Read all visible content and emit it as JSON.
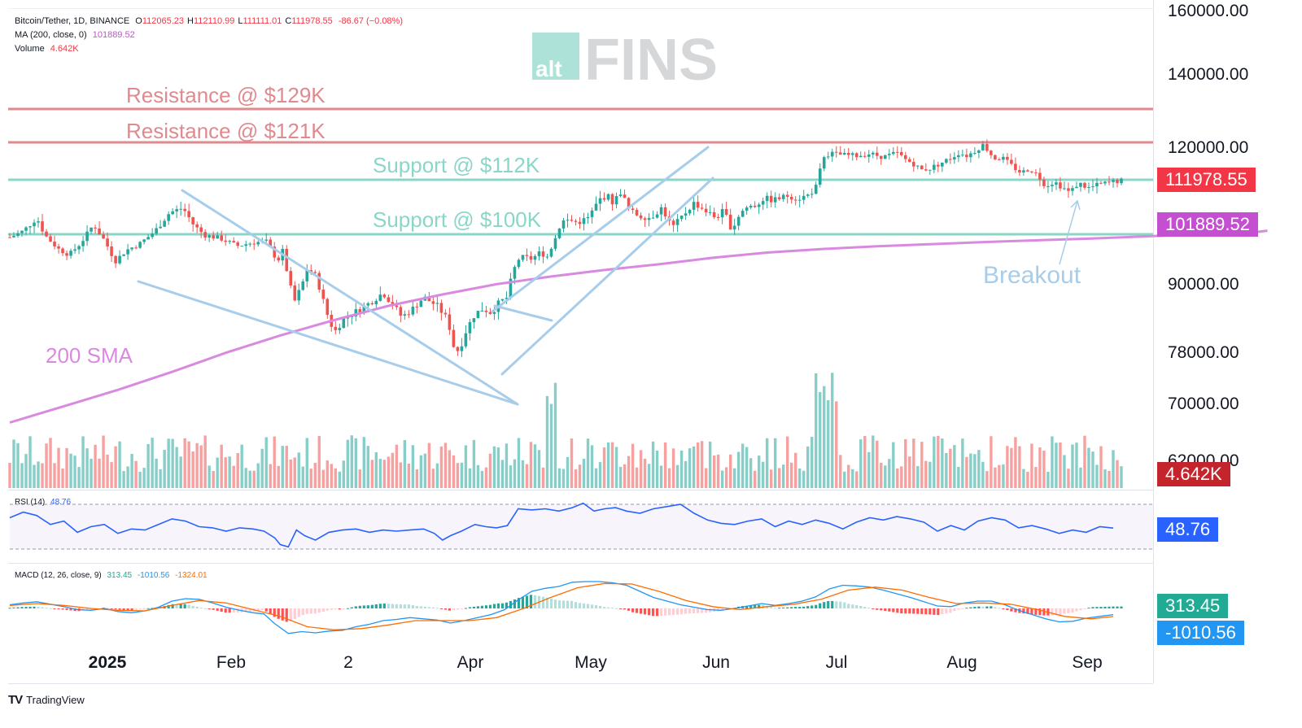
{
  "header": {
    "symbol": "Bitcoin/Tether, 1D, BINANCE",
    "ohlc": [
      {
        "k": "O",
        "v": "112065.23"
      },
      {
        "k": "H",
        "v": "112110.99"
      },
      {
        "k": "L",
        "v": "111111.01"
      },
      {
        "k": "C",
        "v": "111978.55"
      }
    ],
    "change": "-86.67 (−0.08%)",
    "ma_label": "MA (200, close, 0)",
    "ma_value": "101889.52",
    "volume_label": "Volume",
    "volume_value": "4.642K"
  },
  "logo": {
    "small": "alt",
    "big": "FINS"
  },
  "annotations": {
    "res129": "Resistance @ $129K",
    "res121": "Resistance @ $121K",
    "sup112": "Support @ $112K",
    "sup100": "Support @ $100K",
    "sma200": "200 SMA",
    "breakout": "Breakout"
  },
  "price_tags": {
    "last": "111978.55",
    "ma": "101889.52",
    "volume": "4.642K",
    "rsi": "48.76",
    "macd": "313.45",
    "signal": "-1010.56"
  },
  "rsi_panel": {
    "label": "RSI (14)",
    "value": "48.76"
  },
  "macd_panel": {
    "label": "MACD (12, 26, close, 9)",
    "v1": "313.45",
    "v2": "-1010.56",
    "v3": "-1324.01"
  },
  "brand": {
    "name": "TradingView",
    "mark": "TV"
  },
  "colors": {
    "up": "#26a69a",
    "down": "#ef5350",
    "resistance": "#e08a8f",
    "support": "#8ad6c8",
    "sma": "#d98ae0",
    "trend": "#a7cdea",
    "rsi": "#2962ff",
    "macd": "#2196f3",
    "signal": "#ff6d00",
    "last_tag": "#f23645",
    "ma_tag": "#c44fd0",
    "vol_tag": "#c4242c",
    "rsi_tag": "#2962ff",
    "macd_tag": "#22ab94",
    "signal_tag": "#2196f3"
  },
  "chart_data": {
    "type": "candlestick",
    "y_ticks": [
      "160000.00",
      "140000.00",
      "120000.00",
      "90000.00",
      "78000.00",
      "70000.00",
      "62000.00"
    ],
    "x_ticks": [
      "2025",
      "Feb",
      "2",
      "Apr",
      "May",
      "Jun",
      "Jul",
      "Aug",
      "Sep"
    ],
    "levels": {
      "resistance": [
        129000,
        121000
      ],
      "support": [
        112000,
        100000
      ]
    },
    "sma200": [
      [
        0,
        67200
      ],
      [
        40,
        69500
      ],
      [
        80,
        72000
      ],
      [
        120,
        74800
      ],
      [
        160,
        77800
      ],
      [
        200,
        80800
      ],
      [
        240,
        83500
      ],
      [
        280,
        86000
      ],
      [
        320,
        88000
      ],
      [
        360,
        89800
      ],
      [
        400,
        91500
      ],
      [
        440,
        93000
      ],
      [
        480,
        94300
      ],
      [
        520,
        95800
      ],
      [
        560,
        97000
      ],
      [
        600,
        97800
      ],
      [
        640,
        98400
      ],
      [
        680,
        98900
      ],
      [
        720,
        99400
      ],
      [
        760,
        99800
      ],
      [
        800,
        100200
      ],
      [
        840,
        100700
      ],
      [
        880,
        101200
      ],
      [
        920,
        101550
      ],
      [
        930,
        101889.52
      ]
    ],
    "price_path": [
      [
        0,
        100500
      ],
      [
        10,
        101800
      ],
      [
        20,
        104500
      ],
      [
        26,
        101000
      ],
      [
        36,
        97800
      ],
      [
        44,
        96500
      ],
      [
        52,
        99000
      ],
      [
        62,
        103200
      ],
      [
        70,
        99800
      ],
      [
        78,
        95000
      ],
      [
        86,
        97500
      ],
      [
        96,
        99000
      ],
      [
        108,
        102000
      ],
      [
        118,
        105500
      ],
      [
        128,
        106500
      ],
      [
        136,
        103000
      ],
      [
        144,
        101000
      ],
      [
        156,
        100200
      ],
      [
        168,
        98500
      ],
      [
        180,
        99300
      ],
      [
        190,
        99500
      ],
      [
        198,
        95000
      ],
      [
        202,
        97500
      ],
      [
        206,
        91000
      ],
      [
        210,
        86500
      ],
      [
        216,
        89500
      ],
      [
        220,
        93300
      ],
      [
        226,
        91800
      ],
      [
        234,
        85000
      ],
      [
        240,
        81300
      ],
      [
        246,
        83500
      ],
      [
        256,
        85000
      ],
      [
        266,
        86500
      ],
      [
        276,
        88300
      ],
      [
        284,
        86000
      ],
      [
        290,
        84000
      ],
      [
        298,
        85500
      ],
      [
        306,
        87500
      ],
      [
        316,
        86000
      ],
      [
        324,
        83500
      ],
      [
        328,
        79000
      ],
      [
        332,
        78000
      ],
      [
        338,
        82000
      ],
      [
        344,
        84600
      ],
      [
        350,
        85500
      ],
      [
        356,
        84800
      ],
      [
        362,
        86600
      ],
      [
        368,
        87500
      ],
      [
        372,
        92500
      ],
      [
        376,
        95400
      ],
      [
        380,
        96000
      ],
      [
        386,
        95500
      ],
      [
        392,
        97000
      ],
      [
        398,
        96000
      ],
      [
        402,
        99500
      ],
      [
        408,
        103800
      ],
      [
        414,
        104000
      ],
      [
        420,
        103500
      ],
      [
        428,
        104500
      ],
      [
        436,
        108200
      ],
      [
        442,
        109000
      ],
      [
        446,
        107500
      ],
      [
        452,
        109800
      ],
      [
        458,
        106000
      ],
      [
        466,
        104800
      ],
      [
        474,
        104500
      ],
      [
        482,
        106500
      ],
      [
        490,
        102500
      ],
      [
        498,
        105000
      ],
      [
        506,
        107500
      ],
      [
        514,
        106000
      ],
      [
        522,
        104500
      ],
      [
        528,
        106000
      ],
      [
        534,
        102000
      ],
      [
        540,
        105500
      ],
      [
        546,
        106800
      ],
      [
        552,
        107000
      ],
      [
        558,
        108500
      ],
      [
        564,
        108000
      ],
      [
        570,
        108500
      ],
      [
        576,
        109000
      ],
      [
        582,
        108300
      ],
      [
        590,
        109000
      ],
      [
        596,
        110500
      ],
      [
        602,
        117800
      ],
      [
        608,
        118300
      ],
      [
        616,
        118000
      ],
      [
        626,
        117800
      ],
      [
        636,
        118300
      ],
      [
        646,
        117500
      ],
      [
        656,
        118500
      ],
      [
        662,
        117000
      ],
      [
        668,
        116000
      ],
      [
        674,
        114500
      ],
      [
        680,
        114800
      ],
      [
        688,
        116000
      ],
      [
        696,
        117300
      ],
      [
        702,
        118500
      ],
      [
        708,
        117800
      ],
      [
        714,
        119000
      ],
      [
        720,
        120500
      ],
      [
        724,
        118800
      ],
      [
        728,
        117200
      ],
      [
        734,
        117300
      ],
      [
        742,
        115200
      ],
      [
        748,
        113800
      ],
      [
        754,
        114800
      ],
      [
        760,
        113300
      ],
      [
        766,
        111000
      ],
      [
        772,
        111800
      ],
      [
        778,
        110800
      ],
      [
        784,
        109500
      ],
      [
        790,
        111500
      ],
      [
        798,
        110500
      ],
      [
        806,
        111200
      ],
      [
        812,
        111500
      ],
      [
        818,
        111900
      ],
      [
        822,
        111978.55
      ]
    ],
    "rsi_range": [
      30,
      70
    ],
    "rsi_path": [
      [
        0,
        58
      ],
      [
        10,
        63
      ],
      [
        20,
        60
      ],
      [
        30,
        52
      ],
      [
        40,
        55
      ],
      [
        50,
        45
      ],
      [
        60,
        50
      ],
      [
        70,
        52
      ],
      [
        80,
        44
      ],
      [
        90,
        48
      ],
      [
        100,
        47
      ],
      [
        110,
        52
      ],
      [
        120,
        57
      ],
      [
        130,
        55
      ],
      [
        140,
        50
      ],
      [
        150,
        49
      ],
      [
        160,
        46
      ],
      [
        170,
        49
      ],
      [
        180,
        48
      ],
      [
        188,
        46
      ],
      [
        196,
        40
      ],
      [
        200,
        34
      ],
      [
        206,
        32
      ],
      [
        212,
        47
      ],
      [
        218,
        42
      ],
      [
        226,
        38
      ],
      [
        236,
        45
      ],
      [
        246,
        47
      ],
      [
        256,
        48
      ],
      [
        266,
        45
      ],
      [
        276,
        47
      ],
      [
        286,
        46
      ],
      [
        296,
        47
      ],
      [
        306,
        48
      ],
      [
        314,
        44
      ],
      [
        320,
        38
      ],
      [
        326,
        42
      ],
      [
        334,
        46
      ],
      [
        344,
        52
      ],
      [
        352,
        50
      ],
      [
        360,
        49
      ],
      [
        368,
        51
      ],
      [
        376,
        66
      ],
      [
        386,
        65
      ],
      [
        396,
        66
      ],
      [
        406,
        64
      ],
      [
        416,
        67
      ],
      [
        424,
        71
      ],
      [
        432,
        64
      ],
      [
        440,
        66
      ],
      [
        448,
        67
      ],
      [
        456,
        64
      ],
      [
        466,
        62
      ],
      [
        476,
        66
      ],
      [
        486,
        68
      ],
      [
        496,
        70
      ],
      [
        506,
        62
      ],
      [
        516,
        56
      ],
      [
        526,
        53
      ],
      [
        536,
        52
      ],
      [
        546,
        55
      ],
      [
        556,
        57
      ],
      [
        566,
        50
      ],
      [
        576,
        55
      ],
      [
        586,
        52
      ],
      [
        596,
        56
      ],
      [
        606,
        53
      ],
      [
        616,
        48
      ],
      [
        626,
        54
      ],
      [
        636,
        58
      ],
      [
        646,
        56
      ],
      [
        656,
        59
      ],
      [
        666,
        57
      ],
      [
        676,
        54
      ],
      [
        686,
        46
      ],
      [
        696,
        51
      ],
      [
        706,
        47
      ],
      [
        716,
        55
      ],
      [
        726,
        58
      ],
      [
        736,
        56
      ],
      [
        746,
        49
      ],
      [
        756,
        51
      ],
      [
        766,
        48
      ],
      [
        776,
        44
      ],
      [
        786,
        47
      ],
      [
        796,
        45
      ],
      [
        806,
        50
      ],
      [
        816,
        48.76
      ]
    ],
    "macd_path": [
      [
        0,
        600
      ],
      [
        10,
        900
      ],
      [
        20,
        1100
      ],
      [
        30,
        700
      ],
      [
        40,
        300
      ],
      [
        50,
        -200
      ],
      [
        60,
        -300
      ],
      [
        70,
        0
      ],
      [
        80,
        -500
      ],
      [
        90,
        -700
      ],
      [
        100,
        -400
      ],
      [
        110,
        200
      ],
      [
        120,
        1200
      ],
      [
        130,
        1600
      ],
      [
        140,
        1500
      ],
      [
        150,
        900
      ],
      [
        160,
        200
      ],
      [
        170,
        -300
      ],
      [
        180,
        -700
      ],
      [
        188,
        -900
      ],
      [
        196,
        -2500
      ],
      [
        206,
        -4100
      ],
      [
        216,
        -3800
      ],
      [
        226,
        -4000
      ],
      [
        236,
        -3700
      ],
      [
        246,
        -3600
      ],
      [
        256,
        -3000
      ],
      [
        266,
        -2600
      ],
      [
        276,
        -2000
      ],
      [
        286,
        -1800
      ],
      [
        296,
        -1500
      ],
      [
        306,
        -1700
      ],
      [
        316,
        -1900
      ],
      [
        326,
        -2400
      ],
      [
        336,
        -2000
      ],
      [
        346,
        -1500
      ],
      [
        356,
        -1000
      ],
      [
        366,
        -200
      ],
      [
        376,
        1400
      ],
      [
        386,
        2800
      ],
      [
        396,
        3300
      ],
      [
        406,
        3600
      ],
      [
        416,
        4300
      ],
      [
        426,
        4400
      ],
      [
        436,
        4400
      ],
      [
        446,
        4200
      ],
      [
        456,
        3800
      ],
      [
        466,
        2800
      ],
      [
        476,
        1800
      ],
      [
        486,
        1200
      ],
      [
        496,
        600
      ],
      [
        506,
        200
      ],
      [
        516,
        -200
      ],
      [
        526,
        -300
      ],
      [
        536,
        0
      ],
      [
        546,
        400
      ],
      [
        556,
        800
      ],
      [
        566,
        500
      ],
      [
        576,
        800
      ],
      [
        586,
        1200
      ],
      [
        596,
        1900
      ],
      [
        606,
        3200
      ],
      [
        616,
        3800
      ],
      [
        626,
        3700
      ],
      [
        636,
        3500
      ],
      [
        646,
        3000
      ],
      [
        656,
        2400
      ],
      [
        666,
        1800
      ],
      [
        676,
        1100
      ],
      [
        686,
        400
      ],
      [
        696,
        300
      ],
      [
        706,
        900
      ],
      [
        716,
        1200
      ],
      [
        726,
        1200
      ],
      [
        736,
        600
      ],
      [
        746,
        -300
      ],
      [
        756,
        -1000
      ],
      [
        766,
        -1700
      ],
      [
        776,
        -2200
      ],
      [
        786,
        -2100
      ],
      [
        796,
        -1600
      ],
      [
        806,
        -1300
      ],
      [
        816,
        -1010.56
      ]
    ],
    "signal_path": [
      [
        0,
        500
      ],
      [
        20,
        800
      ],
      [
        40,
        500
      ],
      [
        60,
        0
      ],
      [
        80,
        -300
      ],
      [
        100,
        -400
      ],
      [
        120,
        500
      ],
      [
        140,
        1300
      ],
      [
        160,
        900
      ],
      [
        180,
        -200
      ],
      [
        200,
        -1300
      ],
      [
        220,
        -3000
      ],
      [
        240,
        -3500
      ],
      [
        260,
        -3300
      ],
      [
        280,
        -2700
      ],
      [
        300,
        -2000
      ],
      [
        320,
        -2000
      ],
      [
        340,
        -2000
      ],
      [
        360,
        -1500
      ],
      [
        380,
        0
      ],
      [
        400,
        1800
      ],
      [
        420,
        3400
      ],
      [
        440,
        4100
      ],
      [
        460,
        4000
      ],
      [
        480,
        2800
      ],
      [
        500,
        1300
      ],
      [
        520,
        300
      ],
      [
        540,
        -200
      ],
      [
        560,
        300
      ],
      [
        580,
        700
      ],
      [
        600,
        1500
      ],
      [
        620,
        3000
      ],
      [
        640,
        3500
      ],
      [
        660,
        3000
      ],
      [
        680,
        1800
      ],
      [
        700,
        800
      ],
      [
        720,
        900
      ],
      [
        740,
        700
      ],
      [
        760,
        -200
      ],
      [
        780,
        -1300
      ],
      [
        800,
        -1700
      ],
      [
        816,
        -1324.01
      ]
    ]
  }
}
